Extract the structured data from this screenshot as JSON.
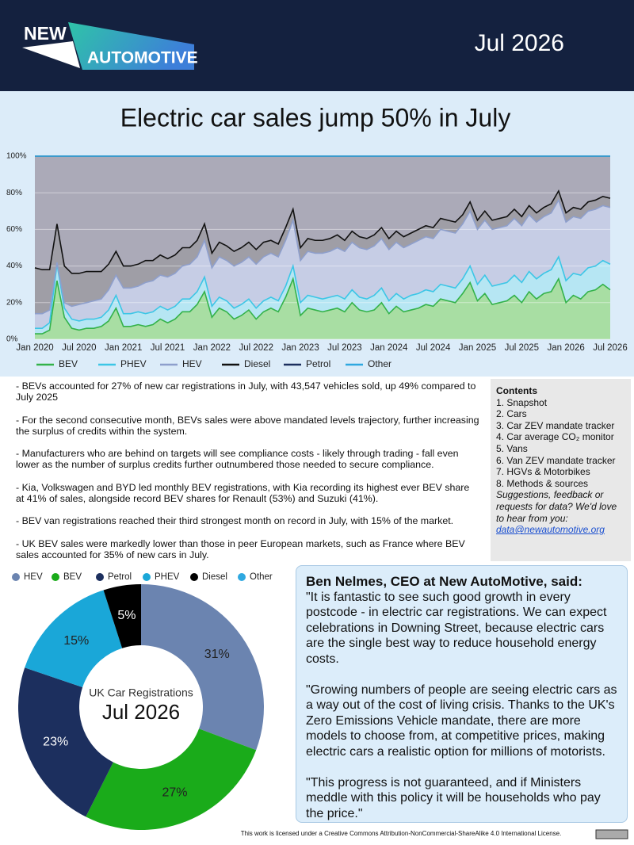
{
  "header": {
    "logo_top": "NEW",
    "logo_bottom": "AUTOMOTIVE",
    "date": "Jul 2026"
  },
  "chart_data": [
    {
      "type": "area",
      "stacked": true,
      "title": "Electric car sales jump 50% in July",
      "categories": [
        "Jan 2020",
        null,
        null,
        null,
        null,
        null,
        "Jul 2020",
        null,
        null,
        null,
        null,
        null,
        "Jan 2021",
        null,
        null,
        null,
        null,
        null,
        "Jul 2021",
        null,
        null,
        null,
        null,
        null,
        "Jan 2022",
        null,
        null,
        null,
        null,
        null,
        "Jul 2022",
        null,
        null,
        null,
        null,
        null,
        "Jan 2023",
        null,
        null,
        null,
        null,
        null,
        "Jul 2023",
        null,
        null,
        null,
        null,
        null,
        "Jan 2024",
        null,
        null,
        null,
        null,
        null,
        "Jul 2024",
        null,
        null,
        null,
        null,
        null,
        "Jan 2025",
        null,
        null,
        null,
        null,
        null,
        "Jul 2025",
        null,
        null,
        null,
        null,
        null,
        "Jan 2026",
        null,
        null,
        null,
        null,
        null,
        "Jul 2026"
      ],
      "series": [
        {
          "name": "BEV",
          "color": "#33b24a",
          "fill": "#a8dea3",
          "values": [
            3,
            3,
            5,
            32,
            12,
            6,
            5,
            6,
            6,
            7,
            10,
            17,
            7,
            7,
            8,
            7,
            8,
            11,
            9,
            11,
            15,
            15,
            19,
            26,
            12,
            17,
            15,
            11,
            13,
            16,
            11,
            15,
            17,
            15,
            23,
            33,
            13,
            17,
            16,
            15,
            16,
            17,
            15,
            20,
            16,
            15,
            16,
            20,
            14,
            18,
            15,
            16,
            17,
            19,
            18,
            22,
            21,
            20,
            25,
            31,
            21,
            25,
            19,
            20,
            21,
            24,
            20,
            26,
            22,
            25,
            26,
            33,
            20,
            24,
            22,
            26,
            27,
            30,
            27
          ]
        },
        {
          "name": "PHEV",
          "color": "#3cc6e6",
          "fill": "#b6e6f3",
          "values": [
            3,
            3,
            4,
            9,
            5,
            5,
            5,
            5,
            5,
            5,
            6,
            7,
            7,
            7,
            7,
            7,
            7,
            7,
            7,
            7,
            7,
            7,
            7,
            8,
            6,
            6,
            6,
            6,
            6,
            6,
            6,
            6,
            6,
            6,
            6,
            7,
            7,
            7,
            7,
            7,
            7,
            7,
            7,
            7,
            7,
            7,
            8,
            8,
            7,
            7,
            7,
            8,
            8,
            8,
            8,
            8,
            8,
            8,
            8,
            9,
            9,
            10,
            10,
            10,
            10,
            11,
            11,
            11,
            11,
            11,
            12,
            12,
            12,
            12,
            13,
            13,
            13,
            13,
            14
          ]
        },
        {
          "name": "HEV",
          "color": "#8e9fcc",
          "fill": "#c6cde5",
          "values": [
            8,
            8,
            7,
            1,
            3,
            7,
            9,
            9,
            10,
            10,
            11,
            11,
            14,
            14,
            14,
            17,
            17,
            17,
            18,
            18,
            18,
            19,
            19,
            20,
            21,
            22,
            22,
            23,
            23,
            23,
            24,
            24,
            24,
            24,
            25,
            25,
            23,
            24,
            24,
            25,
            25,
            26,
            26,
            26,
            27,
            27,
            27,
            27,
            28,
            28,
            28,
            28,
            29,
            29,
            29,
            30,
            30,
            30,
            30,
            30,
            30,
            30,
            31,
            31,
            31,
            31,
            31,
            31,
            31,
            31,
            31,
            31,
            32,
            31,
            31,
            31,
            31,
            30,
            31
          ]
        },
        {
          "name": "Diesel",
          "color": "#111111",
          "fill": "#9f9ea6",
          "values": [
            25,
            24,
            22,
            21,
            20,
            18,
            17,
            17,
            16,
            15,
            14,
            13,
            12,
            12,
            12,
            12,
            11,
            11,
            10,
            10,
            10,
            9,
            9,
            9,
            8,
            8,
            8,
            8,
            8,
            8,
            8,
            8,
            7,
            7,
            7,
            6,
            7,
            7,
            7,
            7,
            7,
            7,
            6,
            6,
            6,
            6,
            6,
            6,
            6,
            6,
            6,
            6,
            6,
            6,
            6,
            6,
            6,
            6,
            5,
            5,
            5,
            5,
            5,
            5,
            5,
            5,
            5,
            5,
            5,
            5,
            5,
            5,
            5,
            5,
            5,
            5,
            5,
            5,
            5
          ]
        },
        {
          "name": "Petrol",
          "color": "#1c2f5e",
          "fill": "#abaab8",
          "values": [
            61,
            62,
            62,
            37,
            60,
            64,
            64,
            63,
            63,
            63,
            59,
            52,
            60,
            60,
            59,
            57,
            57,
            54,
            56,
            54,
            50,
            50,
            46,
            37,
            53,
            47,
            49,
            52,
            50,
            47,
            51,
            47,
            46,
            48,
            39,
            29,
            50,
            45,
            46,
            46,
            45,
            43,
            46,
            41,
            44,
            45,
            43,
            39,
            45,
            41,
            44,
            42,
            40,
            38,
            39,
            34,
            35,
            36,
            32,
            25,
            35,
            30,
            35,
            34,
            33,
            29,
            33,
            27,
            31,
            28,
            26,
            19,
            31,
            28,
            29,
            25,
            24,
            22,
            23
          ]
        },
        {
          "name": "Other",
          "color": "#2fa8e0",
          "fill": "#9ed6f0",
          "values": [
            0,
            0,
            0,
            0,
            0,
            0,
            0,
            0,
            0,
            0,
            0,
            0,
            0,
            0,
            0,
            0,
            0,
            0,
            0,
            0,
            0,
            0,
            0,
            0,
            0,
            0,
            0,
            0,
            0,
            0,
            0,
            0,
            0,
            0,
            0,
            0,
            0,
            0,
            0,
            0,
            0,
            0,
            0,
            0,
            0,
            0,
            0,
            0,
            0,
            0,
            0,
            0,
            0,
            0,
            0,
            0,
            0,
            0,
            0,
            0,
            0,
            0,
            0,
            0,
            0,
            0,
            0,
            0,
            0,
            0,
            0,
            0,
            0,
            0,
            0,
            0,
            0,
            0,
            0
          ]
        }
      ],
      "ylim": [
        0,
        100
      ],
      "yticks": [
        {
          "value": 0,
          "label": "0%"
        },
        {
          "value": 20,
          "label": "20%"
        },
        {
          "value": 40,
          "label": "40%"
        },
        {
          "value": 60,
          "label": "60%"
        },
        {
          "value": 80,
          "label": "80%"
        },
        {
          "value": 100,
          "label": "100%"
        }
      ],
      "grid": true,
      "legend": "bottom"
    },
    {
      "type": "donut",
      "center_subtitle": "UK Car Registrations",
      "center_title": "Jul 2026",
      "categories": [
        "HEV",
        "BEV",
        "Petrol",
        "PHEV",
        "Diesel",
        "Other"
      ],
      "colors": [
        "#6b84b0",
        "#1aab1a",
        "#1c2f5e",
        "#1aa7d8",
        "#000000",
        "#2fa8e0"
      ],
      "values": [
        31,
        27,
        23,
        15,
        5,
        0
      ],
      "value_labels": [
        "31%",
        "27%",
        "23%",
        "15%",
        "5%",
        null
      ],
      "legend": "top"
    }
  ],
  "bullets": [
    "- BEVs accounted for 27% of new car registrations in July, with 43,547 vehicles sold, up 49% compared to July 2025",
    "- For the second consecutive month, BEVs sales were above mandated levels trajectory, further increasing the surplus of credits within the system.",
    "- Manufacturers who are behind on targets will see compliance costs - likely through trading - fall even lower as the number of surplus credits further outnumbered those needed to secure compliance.",
    "- Kia, Volkswagen and BYD led monthly BEV registrations, with Kia recording its highest ever BEV share at 41% of sales, alongside record BEV shares for Renault (53%) and Suzuki (41%).",
    "- BEV van registrations reached their third strongest month on record in July,  with 15% of the market.",
    "- UK BEV sales were markedly lower than those in peer European markets, such as France where BEV sales accounted for 35% of new cars in July."
  ],
  "contents": {
    "title": "Contents",
    "items": [
      "1. Snapshot",
      "2. Cars",
      "3. Car ZEV mandate tracker",
      "4. Car average CO₂ monitor",
      "5. Vans",
      "6. Van ZEV mandate tracker",
      "7. HGVs & Motorbikes",
      "8. Methods & sources"
    ],
    "note": "Suggestions, feedback or requests for data? We'd love to hear from you:",
    "email": "data@newautomotive.org"
  },
  "quote": {
    "heading": "Ben Nelmes, CEO at New AutoMotive, said:",
    "paragraphs": [
      "\"It is fantastic to see such good growth in every postcode - in electric car registrations. We can expect celebrations in Downing Street, because electric cars are the single best way to reduce household energy costs.",
      "\"Growing numbers of people are seeing electric cars as a way out of the cost of living crisis. Thanks to the UK's Zero Emissions Vehicle mandate, there are more models to choose from, at competitive prices, making electric cars a realistic option for millions of motorists.",
      "\"This progress is not guaranteed, and if Ministers meddle with this policy it will be households who pay the price.\""
    ]
  },
  "footer": {
    "license": "This work is licensed under a Creative Commons Attribution-NonCommercial-ShareAlike 4.0 International License."
  }
}
